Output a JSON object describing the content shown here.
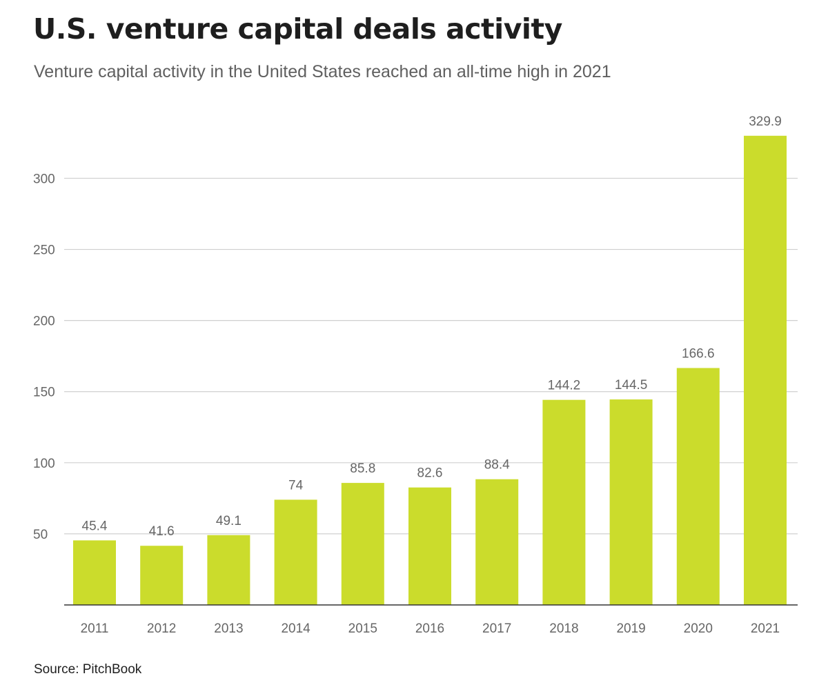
{
  "chart_data": {
    "type": "bar",
    "title": "U.S. venture capital deals activity",
    "subtitle": "Venture capital activity in the United States reached an all-time high in 2021",
    "categories": [
      "2011",
      "2012",
      "2013",
      "2014",
      "2015",
      "2016",
      "2017",
      "2018",
      "2019",
      "2020",
      "2021"
    ],
    "values": [
      45.4,
      41.6,
      49.1,
      74,
      85.8,
      82.6,
      88.4,
      144.2,
      144.5,
      166.6,
      329.9
    ],
    "value_labels": [
      "45.4",
      "41.6",
      "49.1",
      "74",
      "85.8",
      "82.6",
      "88.4",
      "144.2",
      "144.5",
      "166.6",
      "329.9"
    ],
    "y_ticks": [
      50,
      100,
      150,
      200,
      250,
      300
    ],
    "ylim": [
      0,
      330
    ],
    "xlabel": "",
    "ylabel": "",
    "grid": true,
    "source": "Source: PitchBook",
    "colors": {
      "bar": "#cbdc2c",
      "grid": "#cfcfcf",
      "axis": "#333333",
      "label": "#666666",
      "title": "#1e1e1e",
      "subtitle": "#5f5f5f"
    }
  }
}
